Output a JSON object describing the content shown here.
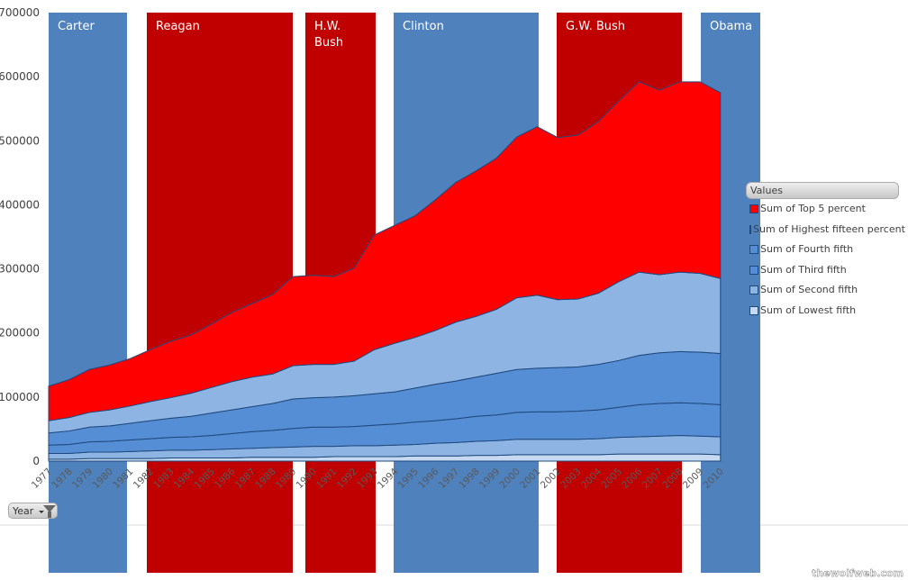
{
  "chart_data": {
    "type": "area",
    "stacked": true,
    "title": "",
    "xlabel": "",
    "ylabel": "",
    "ylim": [
      0,
      700000
    ],
    "yticks": [
      0,
      100000,
      200000,
      300000,
      400000,
      500000,
      600000,
      700000
    ],
    "grid": false,
    "legend_title": "Values",
    "legend_placement": "right",
    "x": [
      1977,
      1978,
      1979,
      1980,
      1981,
      1982,
      1983,
      1984,
      1985,
      1986,
      1987,
      1988,
      1989,
      1990,
      1991,
      1992,
      1993,
      1994,
      1995,
      1996,
      1997,
      1998,
      1999,
      2000,
      2001,
      2002,
      2003,
      2004,
      2005,
      2006,
      2007,
      2008,
      2009,
      2010
    ],
    "series": [
      {
        "name": "Sum of Lowest fifth",
        "color": "#c6d9f1",
        "values": [
          3000,
          3000,
          4000,
          4000,
          4000,
          4000,
          5000,
          5000,
          5000,
          5000,
          6000,
          6000,
          6000,
          6000,
          7000,
          7000,
          7000,
          7000,
          8000,
          8000,
          8000,
          9000,
          9000,
          10000,
          10000,
          10000,
          10000,
          10000,
          11000,
          11000,
          11000,
          11000,
          11000,
          10000
        ]
      },
      {
        "name": "Sum of Second fifth",
        "color": "#8eb4e3",
        "values": [
          9000,
          9000,
          10000,
          10000,
          11000,
          12000,
          12000,
          12000,
          13000,
          14000,
          14000,
          15000,
          16000,
          17000,
          16000,
          17000,
          17000,
          18000,
          18000,
          20000,
          21000,
          22000,
          23000,
          24000,
          24000,
          24000,
          24000,
          25000,
          26000,
          27000,
          28000,
          29000,
          28000,
          28000
        ]
      },
      {
        "name": "Sum of Third fifth",
        "color": "#558ed5",
        "values": [
          13000,
          14000,
          16000,
          17000,
          18000,
          19000,
          20000,
          21000,
          22000,
          24000,
          26000,
          27000,
          29000,
          30000,
          30000,
          30000,
          32000,
          33000,
          35000,
          35000,
          37000,
          39000,
          40000,
          42000,
          43000,
          43000,
          44000,
          45000,
          47000,
          50000,
          51000,
          51000,
          51000,
          50000
        ]
      },
      {
        "name": "Sum of Fourth fifth",
        "color": "#558ed5",
        "values": [
          19000,
          21000,
          23000,
          24000,
          26000,
          28000,
          30000,
          32000,
          35000,
          37000,
          39000,
          42000,
          46000,
          46000,
          47000,
          48000,
          49000,
          50000,
          53000,
          57000,
          59000,
          61000,
          65000,
          67000,
          68000,
          69000,
          69000,
          71000,
          73000,
          77000,
          79000,
          80000,
          80000,
          80000
        ]
      },
      {
        "name": "Sum of Highest fifteen percent",
        "color": "#8eb4e3",
        "values": [
          19000,
          21000,
          23000,
          25000,
          27000,
          30000,
          32000,
          36000,
          40000,
          44000,
          46000,
          46000,
          52000,
          52000,
          51000,
          54000,
          69000,
          76000,
          79000,
          84000,
          92000,
          95000,
          100000,
          112000,
          114000,
          106000,
          106000,
          111000,
          123000,
          130000,
          122000,
          124000,
          123000,
          117000
        ]
      },
      {
        "name": "Sum of Top 5 percent",
        "color": "#ff0000",
        "values": [
          54000,
          59000,
          67000,
          70000,
          74000,
          81000,
          88000,
          91000,
          99000,
          108000,
          115000,
          124000,
          139000,
          139000,
          137000,
          145000,
          179000,
          184000,
          190000,
          204000,
          218000,
          227000,
          236000,
          251000,
          263000,
          253000,
          256000,
          268000,
          282000,
          297000,
          288000,
          297000,
          299000,
          290000
        ]
      }
    ],
    "background_bands": [
      {
        "label": "Carter",
        "color": "#4f81bd",
        "from": 1977,
        "to": 1981
      },
      {
        "label": "Reagan",
        "color": "#c00000",
        "from": 1981,
        "to": 1989
      },
      {
        "label": "H.W. Bush",
        "color": "#c00000",
        "from": 1989,
        "to": 1993
      },
      {
        "label": "Clinton",
        "color": "#4f81bd",
        "from": 1993,
        "to": 2001
      },
      {
        "label": "G.W. Bush",
        "color": "#c00000",
        "from": 2001,
        "to": 2009
      },
      {
        "label": "Obama",
        "color": "#4f81bd",
        "from": 2009,
        "to": 2011
      }
    ],
    "outline_color": "#1f497d"
  },
  "legend": {
    "title": "Values"
  },
  "filter_button": {
    "label": "Year"
  },
  "watermark": "thewolfweb.com"
}
